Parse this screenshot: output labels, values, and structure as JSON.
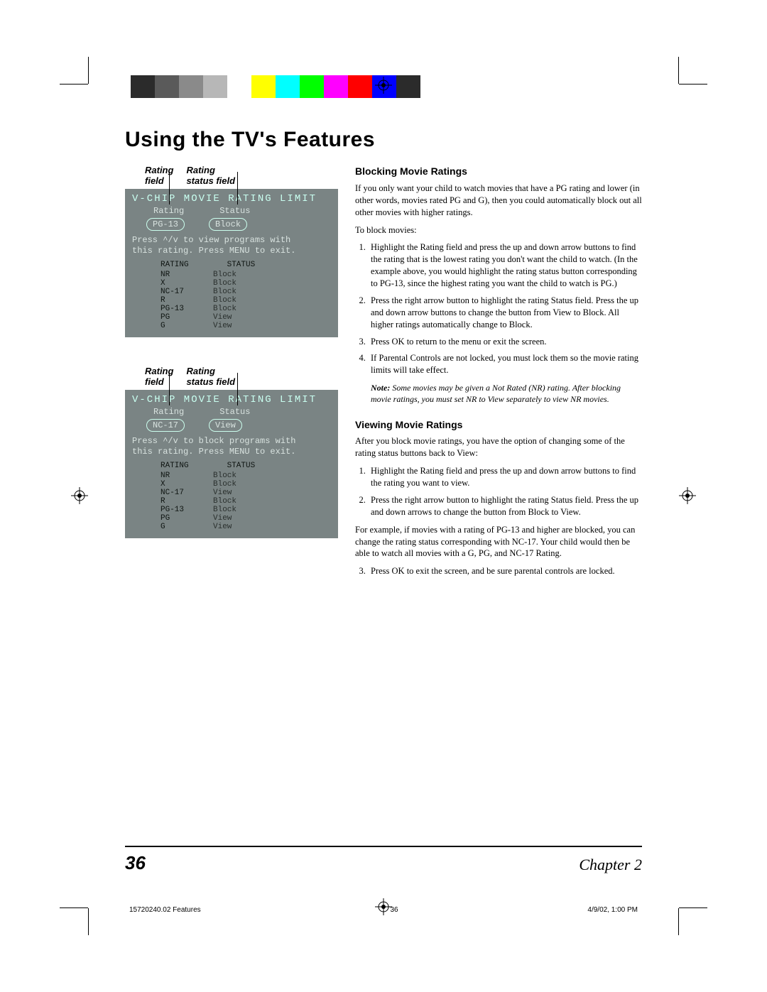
{
  "colorbar": [
    "#2b2b2b",
    "#5a5a5a",
    "#8a8a8a",
    "#b7b7b7",
    "#ffffff",
    "#ffff00",
    "#00ffff",
    "#00ff00",
    "#ff00ff",
    "#ff0000",
    "#0000ff",
    "#2b2b2b"
  ],
  "pageTitle": "Using the TV's Features",
  "labels": {
    "ratingField1": "Rating",
    "ratingField2": "field",
    "statusField1": "Rating",
    "statusField2": "status field"
  },
  "tv1": {
    "title": "V-CHIP MOVIE RATING LIMIT",
    "headRating": "Rating",
    "headStatus": "Status",
    "selRating": "PG-13",
    "selStatus": "Block",
    "instr1": "Press ^/v to view programs with",
    "instr2": "this rating. Press MENU to exit.",
    "tblHeadR": "RATING",
    "tblHeadS": "STATUS",
    "rows": [
      {
        "r": "NR",
        "s": "Block"
      },
      {
        "r": "X",
        "s": "Block"
      },
      {
        "r": "NC-17",
        "s": "Block"
      },
      {
        "r": "R",
        "s": "Block"
      },
      {
        "r": "PG-13",
        "s": "Block"
      },
      {
        "r": "PG",
        "s": "View"
      },
      {
        "r": "G",
        "s": "View"
      }
    ]
  },
  "tv2": {
    "title": "V-CHIP MOVIE RATING LIMIT",
    "headRating": "Rating",
    "headStatus": "Status",
    "selRating": "NC-17",
    "selStatus": "View",
    "instr1": "Press ^/v to block programs with",
    "instr2": "this rating. Press MENU to exit.",
    "tblHeadR": "RATING",
    "tblHeadS": "STATUS",
    "rows": [
      {
        "r": "NR",
        "s": "Block"
      },
      {
        "r": "X",
        "s": "Block"
      },
      {
        "r": "NC-17",
        "s": "View"
      },
      {
        "r": "R",
        "s": "Block"
      },
      {
        "r": "PG-13",
        "s": "Block"
      },
      {
        "r": "PG",
        "s": "View"
      },
      {
        "r": "G",
        "s": "View"
      }
    ]
  },
  "sec1": {
    "h": "Blocking Movie Ratings",
    "p1": "If you only want your child to watch movies that have a PG rating and lower (in other words, movies rated PG and G), then you could automatically block out all other movies with higher ratings.",
    "p2": "To block movies:",
    "li1": "Highlight the Rating field and press the up and down arrow buttons to find the rating that is the lowest rating you don't want the child to watch.  (In the example above, you would highlight the rating status button corresponding to PG-13, since the highest rating you want the child to watch is PG.)",
    "li2": "Press the right arrow button to highlight the rating Status field. Press the up and down arrow buttons to change the button from View to Block. All higher ratings automatically change to Block.",
    "li3": "Press OK to return to the menu or exit the screen.",
    "li4": "If Parental Controls are not locked, you must lock them so the movie rating limits will take effect.",
    "noteLabel": "Note:",
    "note": " Some movies may be given a Not Rated (NR) rating. After blocking movie ratings, you must set NR to View separately to view NR movies."
  },
  "sec2": {
    "h": "Viewing Movie Ratings",
    "p1": "After you block movie ratings, you have the option of changing some of the rating status buttons back to View:",
    "li1": "Highlight the Rating field and press the up and down arrow buttons to find the rating you want to view.",
    "li2": "Press the right arrow button to highlight the rating Status field. Press the up and down arrows to change the button from Block  to View.",
    "p2": "For example, if movies with a rating of PG-13 and higher are blocked, you can change the rating status corresponding with NC-17. Your child would then be able to watch all movies with a G, PG, and NC-17 Rating.",
    "li3": "Press OK to exit the screen, and be sure parental controls are locked."
  },
  "footer": {
    "pageNum": "36",
    "chapter": "Chapter 2",
    "metaLeft": "15720240.02 Features",
    "metaMid": "36",
    "metaRight": "4/9/02, 1:00 PM"
  }
}
